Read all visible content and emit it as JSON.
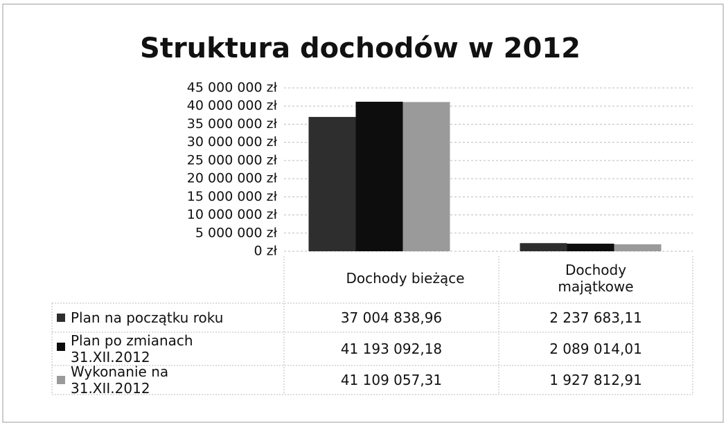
{
  "chart_data": {
    "type": "bar",
    "title": "Struktura dochodów w 2012",
    "categories": [
      "Dochody bieżące",
      "Dochody majątkowe"
    ],
    "series": [
      {
        "name": "Plan na początku roku",
        "color": "#2e2e2e",
        "values": [
          37004838.96,
          2237683.11
        ],
        "value_labels": [
          "37 004 838,96",
          "2 237 683,11"
        ]
      },
      {
        "name": "Plan po zmianach 31.XII.2012",
        "color": "#0d0d0d",
        "values": [
          41193092.18,
          2089014.01
        ],
        "value_labels": [
          "41 193 092,18",
          "2 089 014,01"
        ]
      },
      {
        "name": "Wykonanie na 31.XII.2012",
        "color": "#9a9a9a",
        "values": [
          41109057.31,
          1927812.91
        ],
        "value_labels": [
          "41 109 057,31",
          "1 927 812,91"
        ]
      }
    ],
    "ylim": [
      0,
      45000000
    ],
    "yticks": [
      {
        "value": 0,
        "label": "0 zł"
      },
      {
        "value": 5000000,
        "label": "5 000 000 zł"
      },
      {
        "value": 10000000,
        "label": "10 000 000 zł"
      },
      {
        "value": 15000000,
        "label": "15 000 000 zł"
      },
      {
        "value": 20000000,
        "label": "20 000 000 zł"
      },
      {
        "value": 25000000,
        "label": "25 000 000 zł"
      },
      {
        "value": 30000000,
        "label": "30 000 000 zł"
      },
      {
        "value": 35000000,
        "label": "35 000 000 zł"
      },
      {
        "value": 40000000,
        "label": "40 000 000 zł"
      },
      {
        "value": 45000000,
        "label": "45 000 000 zł"
      }
    ],
    "grid": true
  }
}
